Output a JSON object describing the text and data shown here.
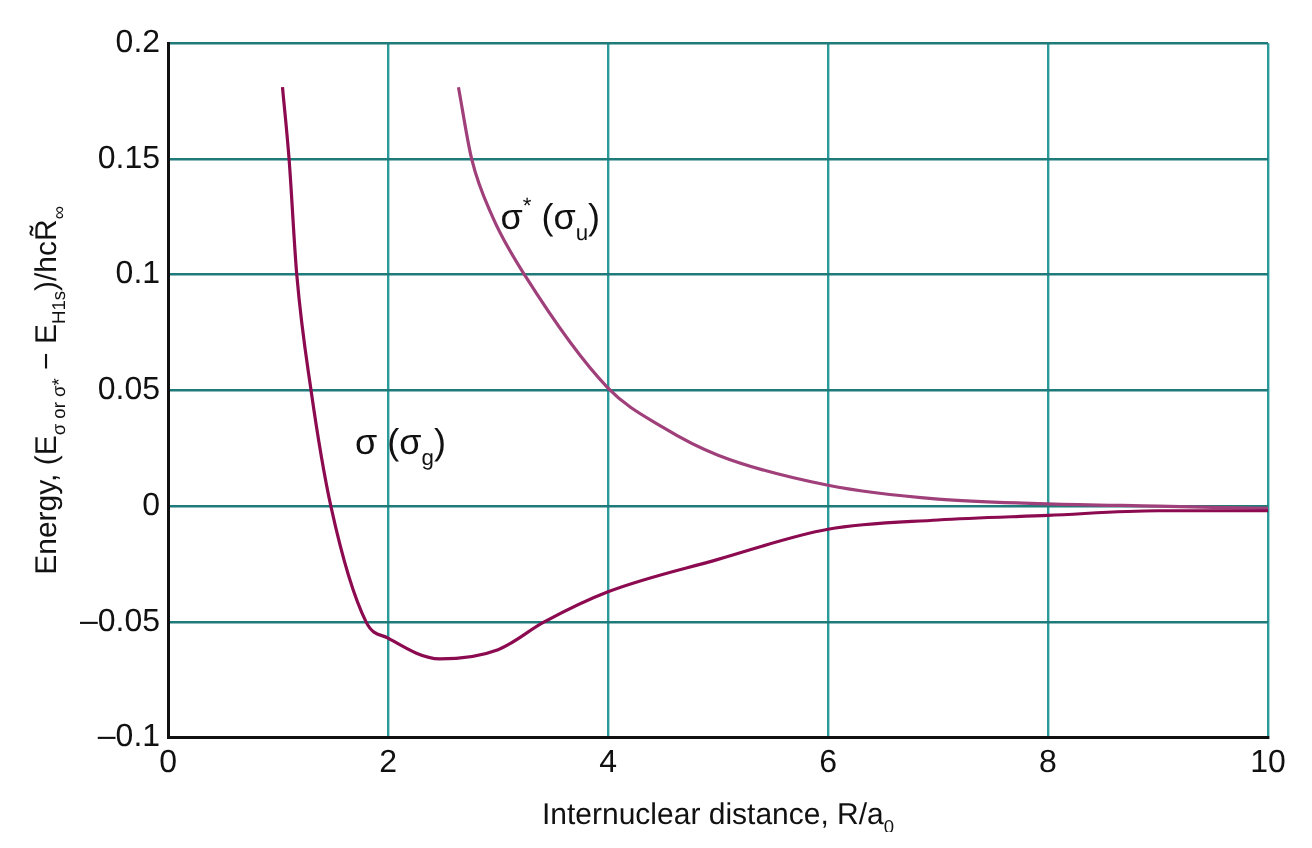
{
  "chart_data": {
    "type": "line",
    "xlabel": "Internuclear distance, R/a$_{0}$",
    "ylabel": "Energy, (E$_{σ or σ*}$ − E$_{H1s}$)/hcR̃$_{∞}$",
    "series": [
      {
        "name": "σ (σ$_{g}$)",
        "color": "#8b0a50",
        "x": [
          1.04,
          1.1,
          1.17,
          1.3,
          1.48,
          1.8,
          2,
          2.47,
          3,
          3.42,
          4,
          5,
          6,
          7,
          8,
          9,
          10
        ],
        "values": [
          0.181,
          0.15,
          0.1,
          0.05,
          0,
          -0.05,
          -0.057,
          -0.066,
          -0.062,
          -0.05,
          -0.037,
          -0.023,
          -0.01,
          -0.006,
          -0.004,
          -0.002,
          -0.002
        ]
      },
      {
        "name": "σ$^{*}$ (σ$_{u}$)",
        "color": "#a0407a",
        "x": [
          2.64,
          2.76,
          2.95,
          3.24,
          4,
          4.5,
          5,
          6,
          7,
          8,
          9,
          10
        ],
        "values": [
          0.181,
          0.15,
          0.125,
          0.1,
          0.051,
          0.034,
          0.022,
          0.009,
          0.003,
          0.001,
          0,
          -0.001
        ]
      }
    ],
    "xlim": [
      0,
      10
    ],
    "xticks": [
      0,
      2,
      4,
      6,
      8,
      10
    ],
    "ylim": [
      -0.1,
      0.2
    ],
    "yticks": [
      {
        "value": -0.1,
        "label": "–0.1"
      },
      {
        "value": -0.05,
        "label": "–0.05"
      },
      0,
      0.05,
      0.1,
      0.15,
      0.2
    ],
    "grid": true,
    "marker": "none",
    "line_style": "solid"
  }
}
